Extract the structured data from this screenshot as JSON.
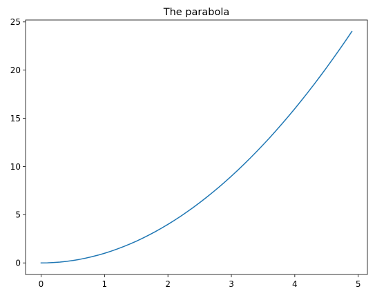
{
  "chart_data": {
    "type": "line",
    "title": "The parabola",
    "xlabel": "",
    "ylabel": "",
    "xlim": [
      -0.245,
      5.145
    ],
    "ylim": [
      -1.2,
      25.2
    ],
    "grid": false,
    "legend": "none",
    "x_ticks": [
      0,
      1,
      2,
      3,
      4,
      5
    ],
    "y_ticks": [
      0,
      5,
      10,
      15,
      20,
      25
    ],
    "series": [
      {
        "color": "#1f77b4",
        "x": [
          0.0,
          0.1,
          0.2,
          0.3,
          0.4,
          0.5,
          0.6,
          0.7,
          0.8,
          0.9,
          1.0,
          1.1,
          1.2,
          1.3,
          1.4,
          1.5,
          1.6,
          1.7,
          1.8,
          1.9,
          2.0,
          2.1,
          2.2,
          2.3,
          2.4,
          2.5,
          2.6,
          2.7,
          2.8,
          2.9,
          3.0,
          3.1,
          3.2,
          3.3,
          3.4,
          3.5,
          3.6,
          3.7,
          3.8,
          3.9,
          4.0,
          4.1,
          4.2,
          4.3,
          4.4,
          4.5,
          4.6,
          4.7,
          4.8,
          4.9
        ],
        "y": [
          0.0,
          0.01,
          0.04,
          0.09,
          0.16,
          0.25,
          0.36,
          0.49,
          0.64,
          0.81,
          1.0,
          1.21,
          1.44,
          1.69,
          1.96,
          2.25,
          2.56,
          2.89,
          3.24,
          3.61,
          4.0,
          4.41,
          4.84,
          5.29,
          5.76,
          6.25,
          6.76,
          7.29,
          7.84,
          8.41,
          9.0,
          9.61,
          10.24,
          10.89,
          11.56,
          12.25,
          12.96,
          13.69,
          14.44,
          15.21,
          16.0,
          16.81,
          17.64,
          18.49,
          19.36,
          20.25,
          21.16,
          22.09,
          23.04,
          24.01
        ]
      }
    ]
  }
}
